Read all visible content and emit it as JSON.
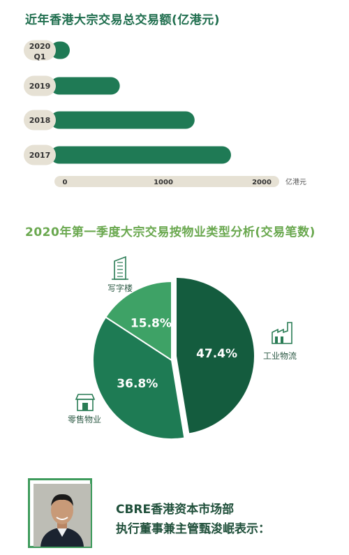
{
  "chart_data": [
    {
      "type": "bar",
      "orientation": "horizontal",
      "title": "近年香港大宗交易总交易额(亿港元)",
      "categories": [
        "2020 Q1",
        "2019",
        "2018",
        "2017"
      ],
      "category_lines": [
        [
          "2020",
          "Q1"
        ],
        [
          "2019"
        ],
        [
          "2018"
        ],
        [
          "2017"
        ]
      ],
      "values": [
        70,
        650,
        1410,
        1780
      ],
      "x_ticks": [
        "0",
        "1000",
        "2000"
      ],
      "x_unit": "亿港元",
      "xlim": [
        0,
        2200
      ]
    },
    {
      "type": "pie",
      "title": "2020年第一季度大宗交易按物业类型分析(交易笔数)",
      "slices": [
        {
          "label": "工业物流",
          "value": 47.4,
          "text": "47.4%",
          "icon": "factory-icon"
        },
        {
          "label": "零售物业",
          "value": 36.8,
          "text": "36.8%",
          "icon": "store-icon"
        },
        {
          "label": "写字楼",
          "value": 15.8,
          "text": "15.8%",
          "icon": "office-building-icon"
        }
      ]
    }
  ],
  "signature": {
    "line1": "CBRE香港资本市场部",
    "line2": "执行董事兼主管甄浚岷表示："
  },
  "colors": {
    "bar": "#1f7a55",
    "axis_bg": "#e6e1d4",
    "pie_dark": "#145c3e",
    "pie_mid": "#1e7b54",
    "pie_light": "#3ea266",
    "icon": "#2a7c55"
  }
}
